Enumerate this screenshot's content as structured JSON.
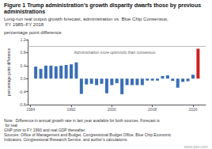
{
  "chart_data": {
    "type": "bar",
    "title": "Figure 1 Trump administration’s growth disparity dwarfs those by previous administrations",
    "subtitle": "Long-run real output growth forecast, administration vs. Blue Chip Consensus, FY 1985–FY 2018",
    "ylabel": "percentage point difference",
    "annotation": "Administration more optimistic than consensus",
    "notes": [
      "Note:  Difference in annual growth rate in last year available for both sources. Forecast is for real",
      "GNP prior to FY 1993 and real GDP thereafter.",
      "Sources: Office of Management and Budget, Congressional Budget Office, Blue Chip Economic",
      "Indicators, Congressional Research Service, and author’s calculations."
    ],
    "watermark": "www.piie.com",
    "x": [
      1985,
      1986,
      1987,
      1988,
      1989,
      1990,
      1991,
      1992,
      1993,
      1994,
      1995,
      1996,
      1997,
      1998,
      1999,
      2000,
      2001,
      2002,
      2003,
      2004,
      2005,
      2006,
      2007,
      2008,
      2009,
      2010,
      2011,
      2012,
      2013,
      2014,
      2015,
      2016,
      2017
    ],
    "values": [
      0.37,
      0.3,
      0.4,
      0.4,
      0.38,
      0.4,
      0.42,
      0.44,
      0.5,
      -0.47,
      -0.18,
      -0.16,
      -0.2,
      -0.16,
      -0.45,
      -0.2,
      -0.14,
      -0.48,
      -0.2,
      -0.2,
      -0.2,
      -0.2,
      -0.06,
      -0.06,
      -0.06,
      0.08,
      0.1,
      -0.07,
      -0.28,
      -0.1,
      -0.08,
      0.12,
      0.92
    ],
    "colors": [
      "#3a6fb5",
      "#3a6fb5",
      "#3a6fb5",
      "#3a6fb5",
      "#3a6fb5",
      "#3a6fb5",
      "#3a6fb5",
      "#3a6fb5",
      "#3a6fb5",
      "#3a6fb5",
      "#3a6fb5",
      "#3a6fb5",
      "#3a6fb5",
      "#3a6fb5",
      "#3a6fb5",
      "#3a6fb5",
      "#3a6fb5",
      "#3a6fb5",
      "#3a6fb5",
      "#3a6fb5",
      "#3a6fb5",
      "#3a6fb5",
      "#3a6fb5",
      "#3a6fb5",
      "#3a6fb5",
      "#3a6fb5",
      "#3a6fb5",
      "#3a6fb5",
      "#3a6fb5",
      "#3a6fb5",
      "#3a6fb5",
      "#3a6fb5",
      "#cc2222"
    ],
    "xlim": [
      1983.5,
      2018.5
    ],
    "xticks": [
      1984,
      1992,
      2000,
      2008,
      2016
    ],
    "ylim": [
      -0.8,
      1.2
    ],
    "yticks": [
      -0.8,
      -0.4,
      {
        "value": 0.0,
        "label": "0.0"
      },
      0.4,
      0.8,
      1.2
    ],
    "hline_y": 1.0,
    "grid": false
  }
}
